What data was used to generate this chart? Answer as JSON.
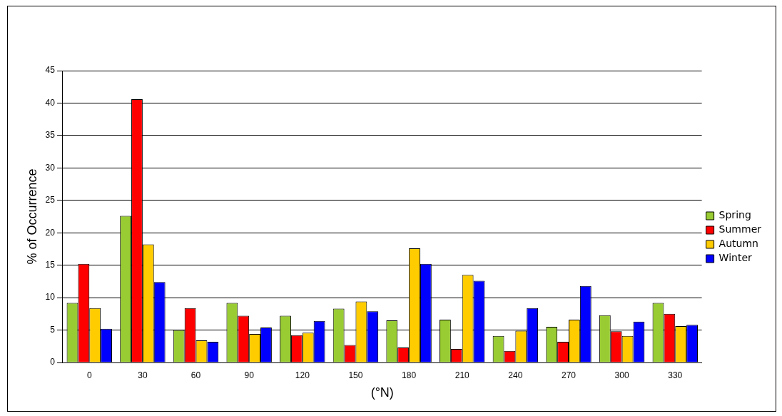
{
  "chart_data": {
    "type": "bar",
    "xlabel": "(°N)",
    "ylabel": "% of Occurrence",
    "categories": [
      "0",
      "30",
      "60",
      "90",
      "120",
      "150",
      "180",
      "210",
      "240",
      "270",
      "300",
      "330"
    ],
    "series": [
      {
        "name": "Spring",
        "color": "#99cc33",
        "values": [
          9.2,
          22.6,
          5.0,
          9.2,
          7.2,
          8.3,
          6.5,
          6.6,
          4.1,
          5.5,
          7.3,
          9.2
        ]
      },
      {
        "name": "Summer",
        "color": "#ff0000",
        "values": [
          15.2,
          40.6,
          8.4,
          7.2,
          4.2,
          2.7,
          2.3,
          2.1,
          1.8,
          3.2,
          4.8,
          7.5
        ]
      },
      {
        "name": "Autumn",
        "color": "#ffcc00",
        "values": [
          8.4,
          18.2,
          3.4,
          4.4,
          4.6,
          9.4,
          17.6,
          13.5,
          4.9,
          6.6,
          4.1,
          5.6
        ]
      },
      {
        "name": "Winter",
        "color": "#0000ff",
        "values": [
          5.2,
          12.4,
          3.2,
          5.4,
          6.4,
          7.9,
          15.2,
          12.6,
          8.4,
          11.8,
          6.3,
          5.8
        ]
      }
    ],
    "ylim": [
      0,
      45
    ],
    "yticks": [
      0,
      5,
      10,
      15,
      20,
      25,
      30,
      35,
      40,
      45
    ],
    "grid": "y",
    "legend": "right"
  }
}
